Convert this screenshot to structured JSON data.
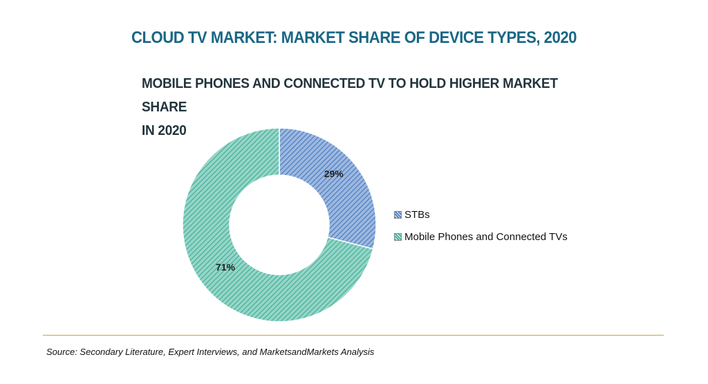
{
  "header": {
    "title": "CLOUD TV MARKET: MARKET SHARE OF DEVICE TYPES, 2020",
    "subtitle_line1": "MOBILE PHONES AND CONNECTED TV TO HOLD HIGHER MARKET SHARE",
    "subtitle_line2": "IN 2020"
  },
  "chart_data": {
    "type": "pie",
    "variant": "donut",
    "title": "CLOUD TV MARKET: MARKET SHARE OF DEVICE TYPES, 2020",
    "subtitle": "MOBILE PHONES AND CONNECTED TV TO HOLD HIGHER MARKET SHARE IN 2020",
    "categories": [
      "STBs",
      "Mobile Phones and Connected TVs"
    ],
    "values": [
      29,
      71
    ],
    "labels": [
      "29%",
      "71%"
    ],
    "colors": [
      "#4f7fc4",
      "#43b39a"
    ],
    "legend_position": "right"
  },
  "footer": {
    "source": "Source: Secondary Literature, Expert Interviews, and MarketsandMarkets Analysis"
  }
}
